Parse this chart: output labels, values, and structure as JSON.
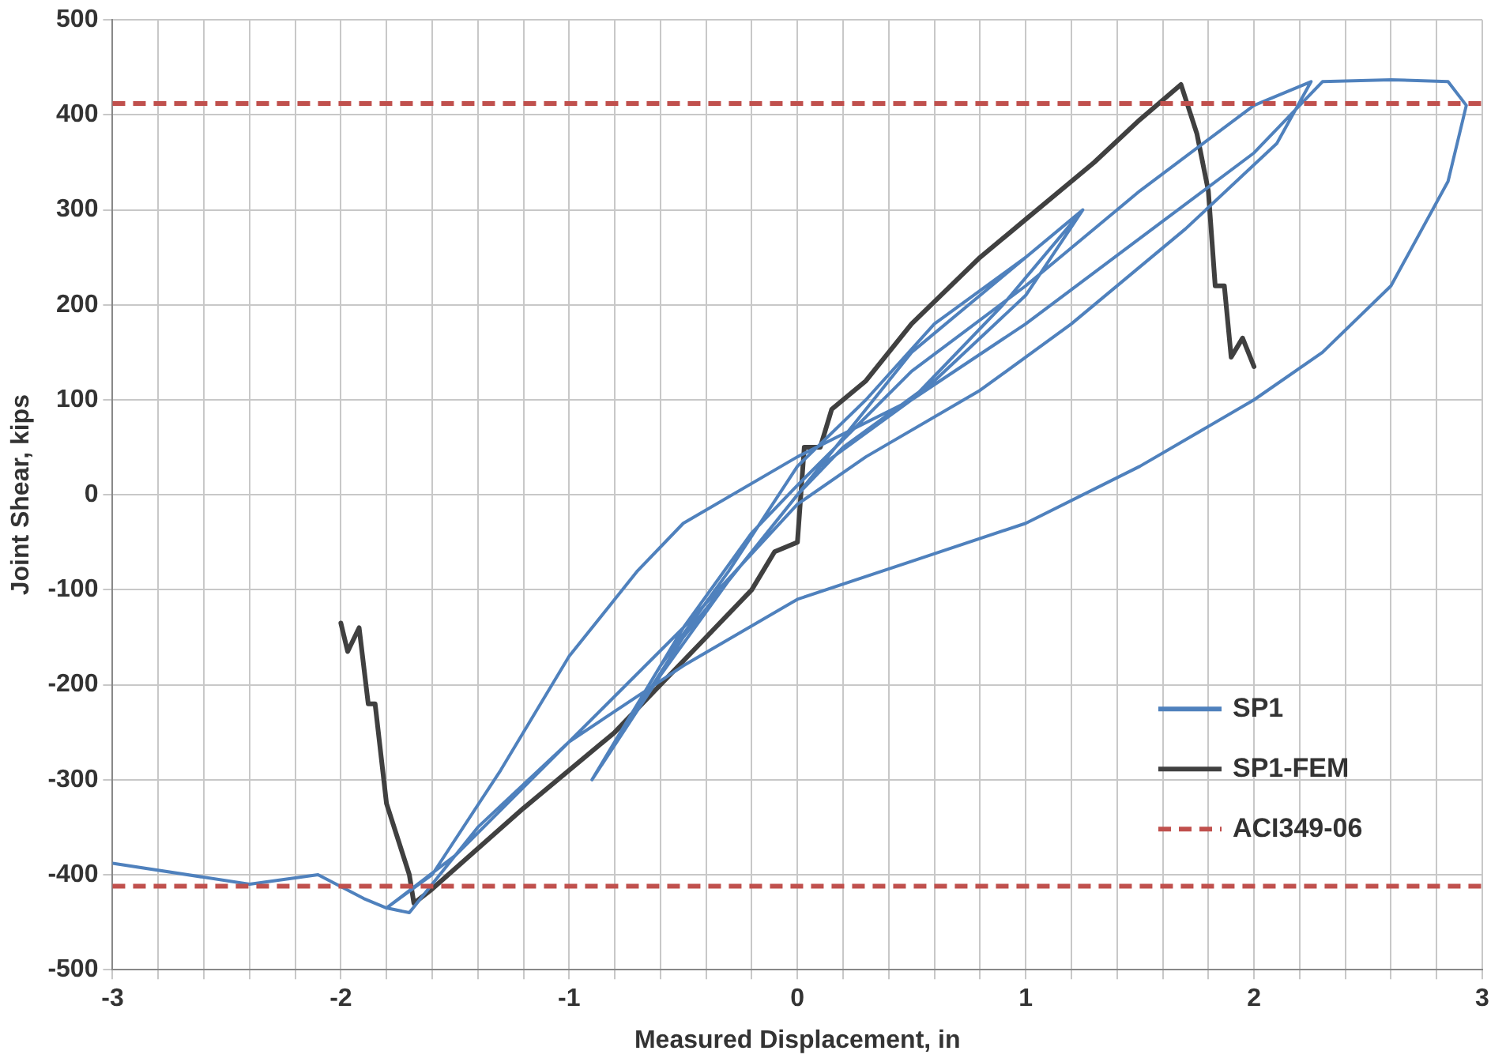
{
  "chart_data": {
    "type": "line",
    "xlabel": "Measured Displacement, in",
    "ylabel": "Joint Shear, kips",
    "xlim": [
      -3,
      3
    ],
    "ylim": [
      -500,
      500
    ],
    "xticks": [
      -3,
      {
        "value": -2.8,
        "label": null
      },
      {
        "value": -2.6,
        "label": null
      },
      {
        "value": -2.4,
        "label": null
      },
      {
        "value": -2.2,
        "label": null
      },
      -2,
      {
        "value": -1.8,
        "label": null
      },
      {
        "value": -1.6,
        "label": null
      },
      {
        "value": -1.4,
        "label": null
      },
      {
        "value": -1.2,
        "label": null
      },
      -1,
      {
        "value": -0.8,
        "label": null
      },
      {
        "value": -0.6,
        "label": null
      },
      {
        "value": -0.4,
        "label": null
      },
      {
        "value": -0.2,
        "label": null
      },
      0,
      {
        "value": 0.2,
        "label": null
      },
      {
        "value": 0.4,
        "label": null
      },
      {
        "value": 0.6,
        "label": null
      },
      {
        "value": 0.8,
        "label": null
      },
      1,
      {
        "value": 1.2,
        "label": null
      },
      {
        "value": 1.4,
        "label": null
      },
      {
        "value": 1.6,
        "label": null
      },
      {
        "value": 1.8,
        "label": null
      },
      2,
      {
        "value": 2.2,
        "label": null
      },
      {
        "value": 2.4,
        "label": null
      },
      {
        "value": 2.6,
        "label": null
      },
      {
        "value": 2.8,
        "label": null
      },
      3
    ],
    "yticks": [
      -500,
      -400,
      -300,
      -200,
      -100,
      0,
      100,
      200,
      300,
      400,
      500
    ],
    "grid": true,
    "legend": "bottom right",
    "marker": "none",
    "series": [
      {
        "name": "SP1",
        "color": "#4f81bd",
        "x": [
          0,
          0.2,
          0.5,
          0.9,
          1.25,
          0.9,
          0.5,
          0.1,
          -0.2,
          -0.5,
          -0.9,
          -0.6,
          -0.3,
          0,
          0.3,
          0.6,
          1,
          1.25,
          1,
          0.6,
          0.2,
          0,
          -0.3,
          -0.6,
          -0.9,
          -0.5,
          -0.2,
          0,
          0.5,
          1,
          1.5,
          2,
          2.25,
          2.1,
          1.7,
          1.2,
          0.8,
          0.3,
          0,
          -0.5,
          -1,
          -1.5,
          -1.8,
          -1.6,
          -1.3,
          -1,
          -0.7,
          -0.5,
          0,
          0.5,
          1,
          1.5,
          2,
          2.3,
          2.6,
          2.85,
          2.93,
          2.85,
          2.6,
          2.3,
          2,
          1.5,
          1,
          0.5,
          0,
          -0.5,
          -1,
          -1.4,
          -1.7,
          -1.8,
          -1.9,
          -2.1,
          -2.4,
          -3
        ],
        "values": [
          0,
          60,
          150,
          230,
          300,
          200,
          100,
          30,
          -60,
          -150,
          -300,
          -180,
          -80,
          30,
          100,
          180,
          250,
          300,
          210,
          120,
          50,
          0,
          -90,
          -190,
          -300,
          -140,
          -40,
          10,
          130,
          220,
          320,
          410,
          435,
          370,
          280,
          180,
          110,
          40,
          -10,
          -140,
          -260,
          -380,
          -435,
          -400,
          -290,
          -170,
          -80,
          -30,
          40,
          100,
          180,
          270,
          360,
          435,
          437,
          435,
          410,
          330,
          220,
          150,
          100,
          30,
          -30,
          -70,
          -110,
          -180,
          -260,
          -350,
          -440,
          -435,
          -425,
          -400,
          -410,
          -388
        ]
      },
      {
        "name": "SP1-FEM",
        "color": "#404040",
        "x": [
          -2,
          -1.97,
          -1.92,
          -1.88,
          -1.85,
          -1.8,
          -1.7,
          -1.68,
          -1.6,
          -1.2,
          -0.8,
          -0.4,
          -0.2,
          -0.1,
          0,
          0.03,
          0.1,
          0.15,
          0.3,
          0.5,
          0.8,
          1,
          1.3,
          1.5,
          1.68,
          1.75,
          1.8,
          1.83,
          1.87,
          1.9,
          1.95,
          2
        ],
        "values": [
          -135,
          -165,
          -140,
          -220,
          -220,
          -325,
          -400,
          -430,
          -415,
          -330,
          -250,
          -150,
          -100,
          -60,
          -50,
          50,
          50,
          90,
          120,
          180,
          250,
          290,
          350,
          395,
          432,
          380,
          320,
          220,
          220,
          145,
          165,
          135
        ]
      }
    ],
    "ref_lines": [
      {
        "axis": "y",
        "value": 412,
        "label": "ACI349-06",
        "color": "#c0504d",
        "line_style": "dashed"
      },
      {
        "axis": "y",
        "value": -412,
        "color": "#c0504d",
        "line_style": "dashed"
      }
    ]
  }
}
